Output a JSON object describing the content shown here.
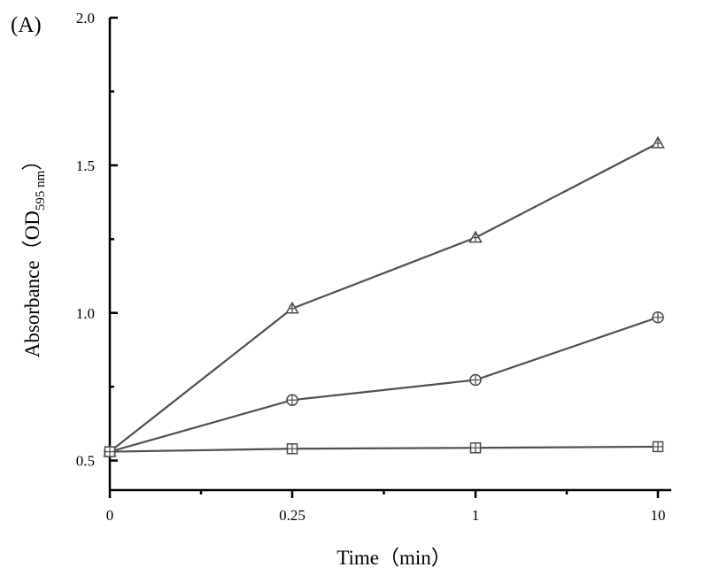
{
  "panel_label": "(A)",
  "chart_data": {
    "type": "line",
    "categories": [
      "0",
      "0.25",
      "1",
      "10"
    ],
    "xlabel": "Time（min）",
    "ylabel": {
      "prefix": "Absorbance（OD",
      "subscript": "595 nm",
      "suffix": "）"
    },
    "ylim": [
      0.4,
      2.0
    ],
    "yticks": [
      {
        "value": 0.5,
        "label": "0.5"
      },
      {
        "value": 1.0,
        "label": "1.0"
      },
      {
        "value": 1.5,
        "label": "1.5"
      },
      {
        "value": 2.0,
        "label": "2.0"
      }
    ],
    "y_minor_ticks": [
      0.75,
      1.25,
      1.75
    ],
    "x_minor_ticks": [
      0.5,
      1.5,
      2.5
    ],
    "grid": false,
    "legend": "none",
    "series": [
      {
        "marker": "triangle",
        "values": [
          0.53,
          1.015,
          1.255,
          1.575
        ]
      },
      {
        "marker": "circle",
        "values": [
          0.53,
          0.705,
          0.773,
          0.985
        ]
      },
      {
        "marker": "square",
        "values": [
          0.53,
          0.54,
          0.543,
          0.547
        ]
      }
    ],
    "line_color": "#505050",
    "marker_color": "#4a4a4a"
  }
}
